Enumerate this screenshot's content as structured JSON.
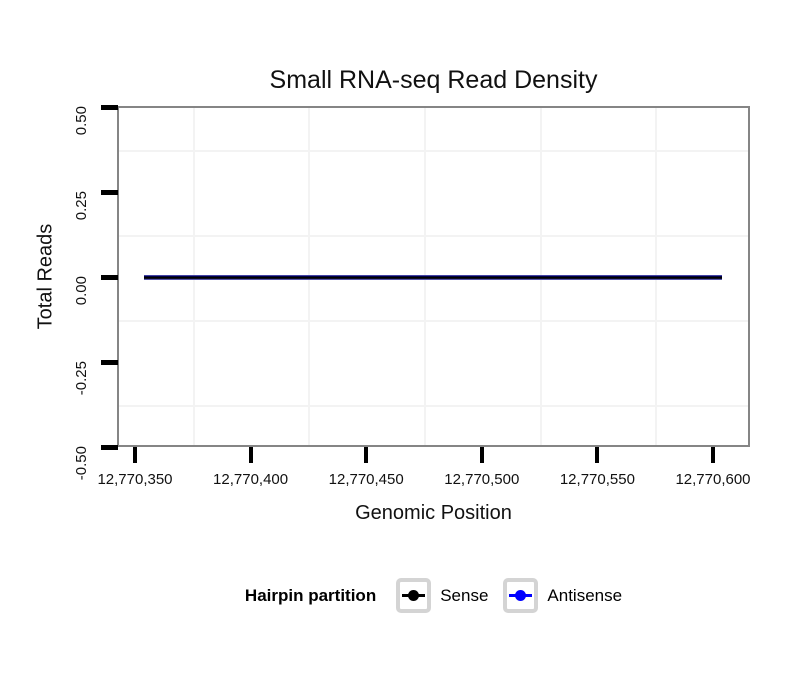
{
  "chart_data": {
    "type": "line",
    "title": "Small RNA-seq Read Density",
    "xlabel": "Genomic Position",
    "ylabel": "Total Reads",
    "x_tick_labels": [
      "12,770,350",
      "12,770,400",
      "12,770,450",
      "12,770,500",
      "12,770,550",
      "12,770,600"
    ],
    "x_tick_values": [
      12770350,
      12770400,
      12770450,
      12770500,
      12770550,
      12770600
    ],
    "y_tick_labels": [
      "0.50",
      "0.25",
      "0.00",
      "-0.25",
      "-0.50"
    ],
    "y_tick_values": [
      0.5,
      0.25,
      0.0,
      -0.25,
      -0.5
    ],
    "xlim": [
      12770342,
      12770617
    ],
    "ylim": [
      -0.5,
      0.5
    ],
    "grid": "very light minor gridlines at midpoints between ticks; white panel background; gray panel border; thick black axis ticks",
    "series": [
      {
        "name": "Sense",
        "color": "#000000",
        "x_start": 12770354,
        "x_end": 12770604,
        "y_constant": 0,
        "note": "flat line at y = 0 spanning the full region"
      },
      {
        "name": "Antisense",
        "color": "#0000FF",
        "x_start": 12770354,
        "x_end": 12770604,
        "y_constant": 0,
        "note": "flat line at y = 0, overlapped by Sense line giving a dark navy appearance"
      }
    ],
    "legend": {
      "title": "Hairpin partition",
      "position": "bottom",
      "entries": [
        {
          "label": "Sense",
          "color": "#000000"
        },
        {
          "label": "Antisense",
          "color": "#0000FF"
        }
      ]
    },
    "colors": {
      "panel_border": "#858585",
      "tick": "#000000",
      "minor_gridline": "#f3f3f3",
      "legend_key_border": "#d4d4d4",
      "overlap_line": "#10103a"
    }
  }
}
